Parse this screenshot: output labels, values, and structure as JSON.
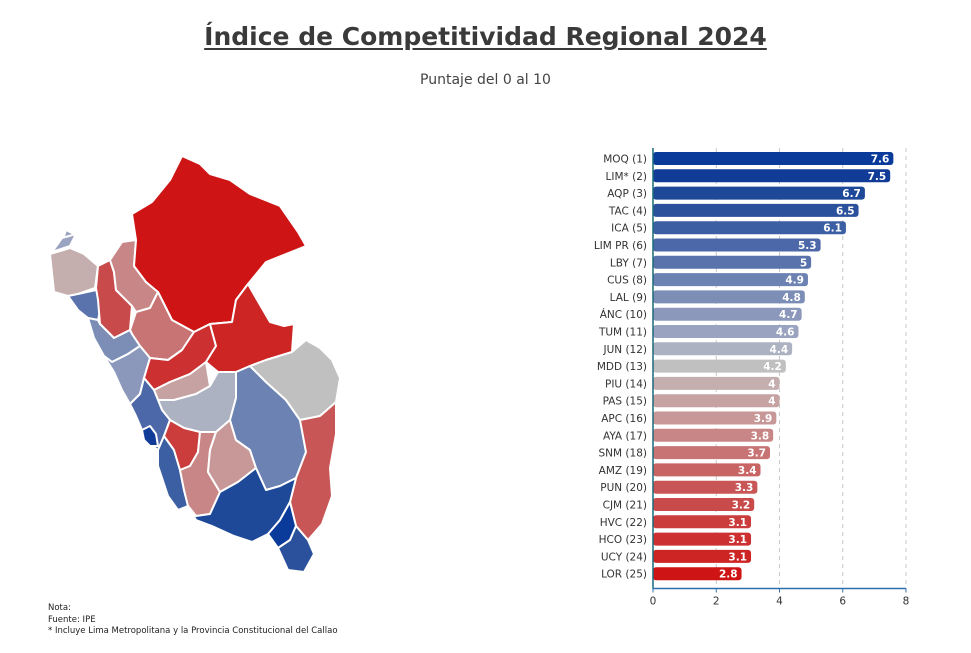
{
  "title": "Índice de Competitividad Regional 2024",
  "subtitle": "Puntaje del 0 al 10",
  "notes": {
    "nota": "Nota:",
    "fuente": "Fuente: IPE",
    "asterisk": "* Incluye Lima Metropolitana y la Provincia Constitucional del Callao"
  },
  "chart_data": {
    "type": "bar",
    "orientation": "horizontal",
    "title": "Índice de Competitividad Regional 2024",
    "subtitle": "Puntaje del 0 al 10",
    "xlabel": "",
    "ylabel": "",
    "xlim": [
      0,
      8
    ],
    "xticks": [
      0,
      2,
      4,
      6,
      8
    ],
    "grid": "vertical dashed",
    "categories": [
      "MOQ (1)",
      "LIM* (2)",
      "AQP (3)",
      "TAC (4)",
      "ICA (5)",
      "LIM PR (6)",
      "LBY (7)",
      "CUS (8)",
      "LAL (9)",
      "ÁNC (10)",
      "TUM (11)",
      "JUN (12)",
      "MDD (13)",
      "PIU (14)",
      "PAS (15)",
      "APC (16)",
      "AYA (17)",
      "SNM (18)",
      "AMZ (19)",
      "PUN (20)",
      "CJM (21)",
      "HVC (22)",
      "HCO (23)",
      "UCY (24)",
      "LOR (25)"
    ],
    "values": [
      7.6,
      7.5,
      6.7,
      6.5,
      6.1,
      5.3,
      5,
      4.9,
      4.8,
      4.7,
      4.6,
      4.4,
      4.2,
      4,
      4,
      3.9,
      3.8,
      3.7,
      3.4,
      3.3,
      3.2,
      3.1,
      3.1,
      3.1,
      2.8
    ],
    "value_labels": [
      "7.6",
      "7.5",
      "6.7",
      "6.5",
      "6.1",
      "5.3",
      "5",
      "4.9",
      "4.8",
      "4.7",
      "4.6",
      "4.4",
      "4.2",
      "4",
      "4",
      "3.9",
      "3.8",
      "3.7",
      "3.4",
      "3.3",
      "3.2",
      "3.1",
      "3.1",
      "3.1",
      "2.8"
    ],
    "colors": [
      "#0a3a9a",
      "#103c98",
      "#1e4898",
      "#2c519c",
      "#3c5ea2",
      "#4c68a8",
      "#5a73ac",
      "#6c82b2",
      "#7d8eb6",
      "#8b98bc",
      "#9aa3bf",
      "#adb2c2",
      "#c0c0c0",
      "#c4aeae",
      "#c6a2a2",
      "#c89898",
      "#c98686",
      "#c87474",
      "#c96464",
      "#c85656",
      "#c94a4a",
      "#cb3c3c",
      "#cc3030",
      "#cd2424",
      "#ce1414"
    ],
    "color_scale": {
      "high": "#0a3a9a",
      "mid": "#c0c0c0",
      "low": "#ce1414"
    }
  },
  "map_colors": {
    "loreto": "#ce1414",
    "amazonas": "#c98686",
    "cajamarca": "#c94a4a",
    "tumbes": "#9aa3bf",
    "piura": "#c4aeae",
    "lambayeque": "#5a73ac",
    "la_libertad": "#7d8eb6",
    "san_martin": "#c87474",
    "ancash": "#8b98bc",
    "huanuco": "#cc3030",
    "ucayali": "#cd2424",
    "pasco": "#c6a2a2",
    "junin": "#adb2c2",
    "lima_provincias": "#4c68a8",
    "lima": "#103c98",
    "ica": "#3c5ea2",
    "huancavelica": "#cb3c3c",
    "ayacucho": "#c98686",
    "apurimac": "#c89898",
    "cusco": "#6c82b2",
    "madre_de_dios": "#c0c0c0",
    "puno": "#c85656",
    "arequipa": "#1e4898",
    "moquegua": "#0a3a9a",
    "tacna": "#2c519c"
  }
}
